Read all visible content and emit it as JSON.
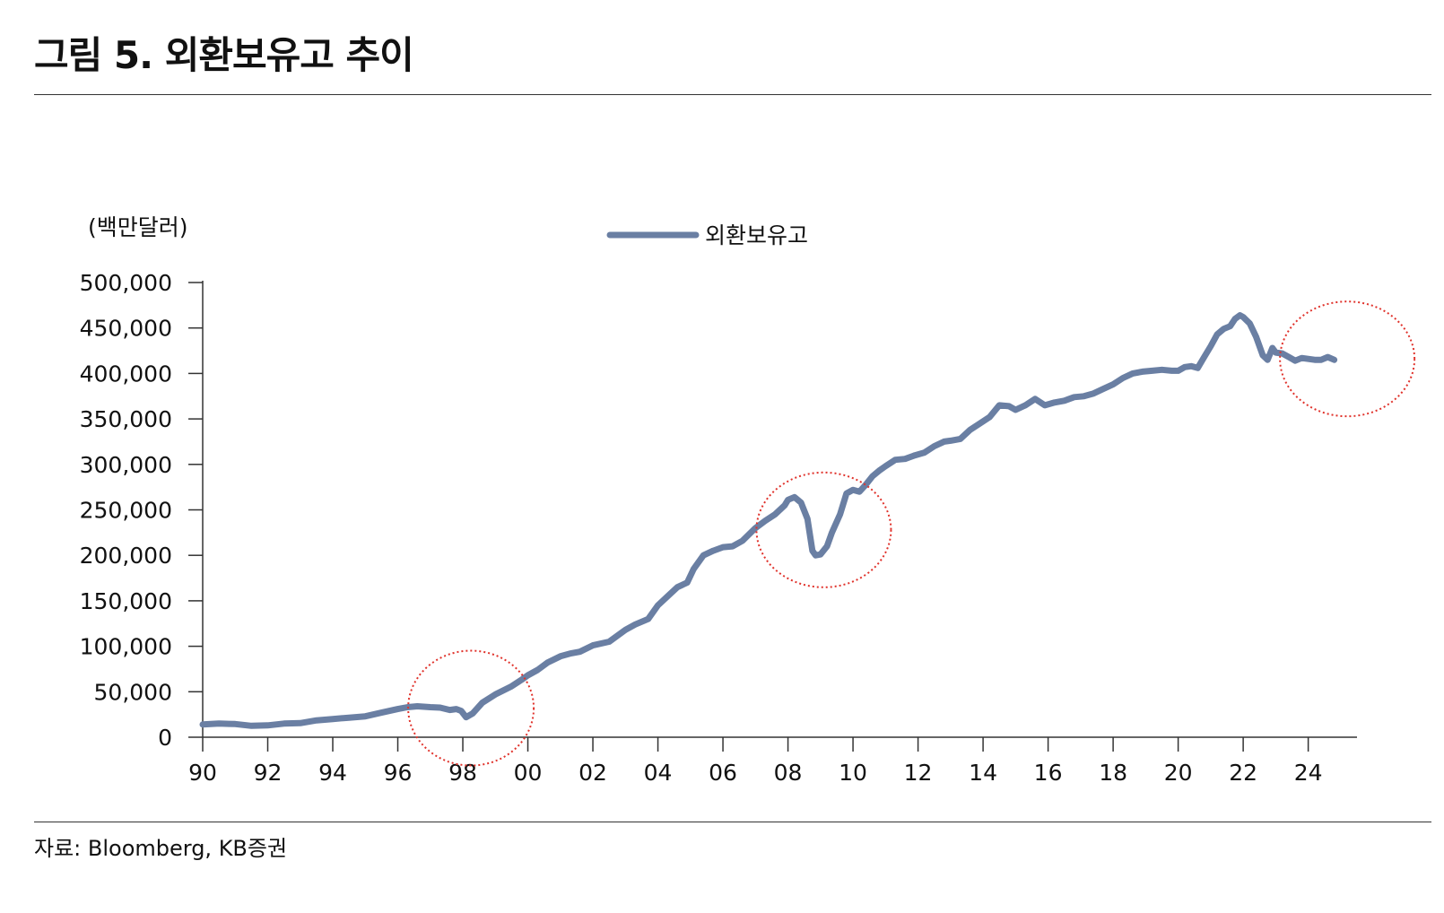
{
  "page": {
    "title": "그림 5. 외환보유고 추이",
    "source": "자료: Bloomberg, KB증권"
  },
  "chart_data": {
    "type": "line",
    "unit_label": "(백만달러)",
    "xlabel": "",
    "ylabel": "",
    "ylim": [
      0,
      500000
    ],
    "yticks": [
      0,
      50000,
      100000,
      150000,
      200000,
      250000,
      300000,
      350000,
      400000,
      450000,
      500000
    ],
    "ytick_labels": [
      "0",
      "50,000",
      "100,000",
      "150,000",
      "200,000",
      "250,000",
      "300,000",
      "350,000",
      "400,000",
      "450,000",
      "500,000"
    ],
    "xlim": [
      1990,
      2025.5
    ],
    "xticks": [
      1990,
      1992,
      1994,
      1996,
      1998,
      2000,
      2002,
      2004,
      2006,
      2008,
      2010,
      2012,
      2014,
      2016,
      2018,
      2020,
      2022,
      2024
    ],
    "xtick_labels": [
      "90",
      "92",
      "94",
      "96",
      "98",
      "00",
      "02",
      "04",
      "06",
      "08",
      "10",
      "12",
      "14",
      "16",
      "18",
      "20",
      "22",
      "24"
    ],
    "legend_position": "top-center",
    "grid": false,
    "colors": {
      "series": "#6a7fa3",
      "highlight": "#e0322b"
    },
    "series": [
      {
        "name": "외환보유고",
        "x": [
          1990.0,
          1990.5,
          1991.0,
          1991.5,
          1992.0,
          1992.5,
          1993.0,
          1993.5,
          1994.0,
          1994.5,
          1995.0,
          1995.5,
          1996.0,
          1996.3,
          1996.6,
          1997.0,
          1997.3,
          1997.6,
          1997.8,
          1997.95,
          1998.1,
          1998.3,
          1998.6,
          1999.0,
          1999.5,
          1999.8,
          2000.0,
          2000.3,
          2000.6,
          2001.0,
          2001.3,
          2001.6,
          2002.0,
          2002.5,
          2003.0,
          2003.3,
          2003.7,
          2004.0,
          2004.3,
          2004.6,
          2004.9,
          2005.1,
          2005.4,
          2005.7,
          2006.0,
          2006.3,
          2006.6,
          2007.0,
          2007.3,
          2007.6,
          2007.9,
          2008.0,
          2008.2,
          2008.4,
          2008.6,
          2008.75,
          2008.85,
          2009.0,
          2009.2,
          2009.35,
          2009.6,
          2009.8,
          2010.0,
          2010.2,
          2010.4,
          2010.6,
          2010.8,
          2011.0,
          2011.3,
          2011.6,
          2011.9,
          2012.2,
          2012.5,
          2012.8,
          2013.0,
          2013.3,
          2013.6,
          2013.9,
          2014.2,
          2014.5,
          2014.8,
          2015.0,
          2015.3,
          2015.6,
          2015.9,
          2016.2,
          2016.5,
          2016.8,
          2017.1,
          2017.4,
          2017.7,
          2018.0,
          2018.3,
          2018.6,
          2018.9,
          2019.2,
          2019.5,
          2019.8,
          2020.0,
          2020.2,
          2020.4,
          2020.6,
          2020.8,
          2021.0,
          2021.2,
          2021.4,
          2021.6,
          2021.75,
          2021.9,
          2022.0,
          2022.2,
          2022.4,
          2022.6,
          2022.75,
          2022.9,
          2023.0,
          2023.2,
          2023.4,
          2023.6,
          2023.8,
          2024.0,
          2024.2,
          2024.4,
          2024.6,
          2024.8
        ],
        "values": [
          14000,
          15000,
          14500,
          12500,
          13000,
          15000,
          15500,
          18500,
          20000,
          21500,
          23000,
          27000,
          31000,
          33000,
          34000,
          33000,
          32500,
          30000,
          31000,
          29000,
          22000,
          26000,
          38000,
          47000,
          56000,
          63000,
          68000,
          74000,
          82000,
          89000,
          92000,
          94000,
          101000,
          105000,
          118000,
          124000,
          130000,
          145000,
          155000,
          165000,
          170000,
          185000,
          200000,
          205000,
          209000,
          210000,
          216000,
          230000,
          238000,
          245000,
          255000,
          261000,
          264000,
          258000,
          240000,
          205000,
          200000,
          201000,
          210000,
          225000,
          245000,
          268000,
          272000,
          270000,
          278000,
          287000,
          293000,
          298000,
          305000,
          306000,
          310000,
          313000,
          320000,
          325000,
          326000,
          328000,
          338000,
          345000,
          352000,
          365000,
          364000,
          360000,
          365000,
          372000,
          365000,
          368000,
          370000,
          374000,
          375000,
          378000,
          383000,
          388000,
          395000,
          400000,
          402000,
          403000,
          404000,
          403000,
          403000,
          407000,
          408000,
          406000,
          418000,
          430000,
          443000,
          449000,
          452000,
          460000,
          464000,
          462000,
          455000,
          440000,
          420000,
          415000,
          428000,
          423000,
          422000,
          418000,
          414000,
          417000,
          416000,
          415000,
          415000,
          418000,
          415000
        ]
      }
    ],
    "highlights": [
      {
        "x_center": 1998.25,
        "y_center": 32000,
        "label": ""
      },
      {
        "x_center": 2009.1,
        "y_center": 228000,
        "label": ""
      },
      {
        "x_center": 2025.2,
        "y_center": 416000,
        "label": ""
      }
    ]
  }
}
